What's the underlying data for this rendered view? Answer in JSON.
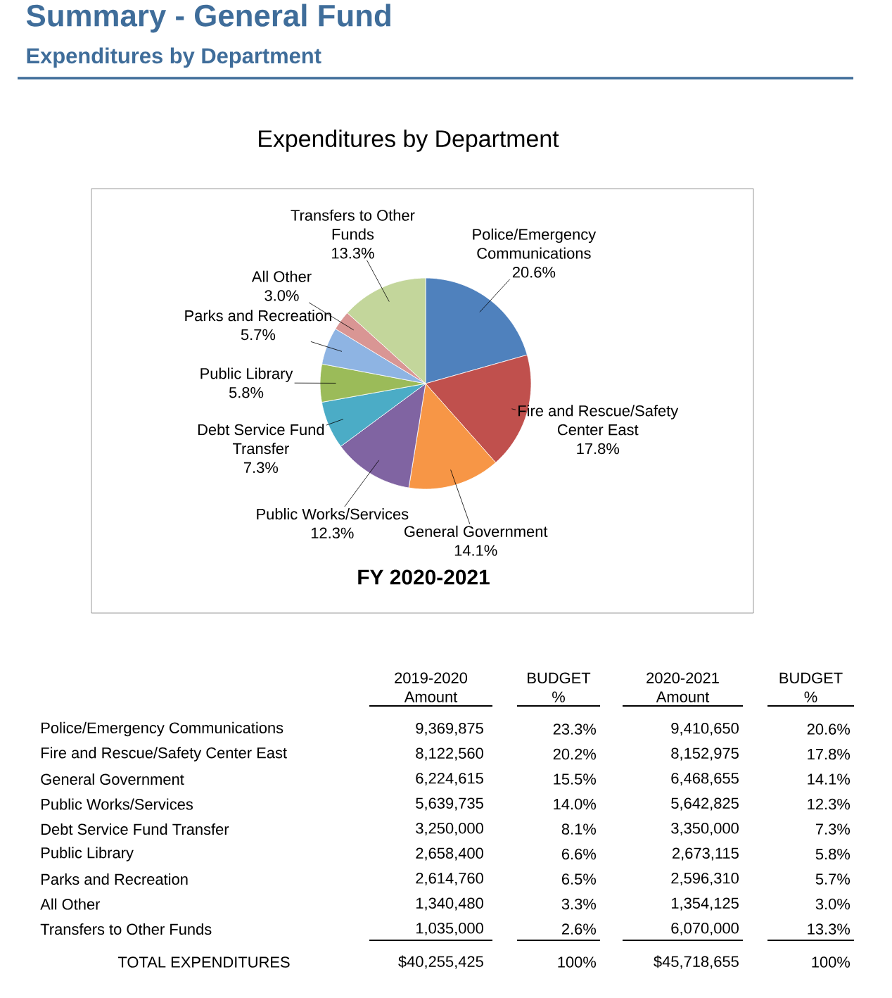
{
  "chart_data": [
    {
      "type": "pie",
      "title": "Expenditures by Department",
      "xlabel": "FY 2020-2021",
      "annotations": [
        "Summary - General Fund",
        "Expenditures by Department"
      ],
      "categories": [
        "Police/Emergency Communications",
        "Fire and Rescue/Safety Center East",
        "General Government",
        "Public Works/Services",
        "Debt Service Fund Transfer",
        "Public Library",
        "Parks and Recreation",
        "All Other",
        "Transfers to Other Funds"
      ],
      "values": [
        20.6,
        17.8,
        14.1,
        12.3,
        7.3,
        5.8,
        5.7,
        3.0,
        13.3
      ],
      "value_labels": [
        "20.6%",
        "17.8%",
        "14.1%",
        "12.3%",
        "7.3%",
        "5.8%",
        "5.7%",
        "3.0%",
        "13.3%"
      ],
      "colors": [
        "#4f81bd",
        "#c0504d",
        "#f79646",
        "#8064a2",
        "#4bacc6",
        "#9bbb59",
        "#8eb4e3",
        "#d99694",
        "#c3d69b"
      ]
    },
    {
      "type": "other",
      "categories": [
        "Police/Emergency Communications",
        "Fire and Rescue/Safety Center East",
        "General Government",
        "Public Works/Services",
        "Debt Service Fund Transfer",
        "Public Library",
        "Parks and Recreation",
        "All Other",
        "Transfers to Other Funds",
        "TOTAL EXPENDITURES"
      ],
      "series": [
        {
          "name": "2019-2020 Amount",
          "values": [
            9369875,
            8122560,
            6224615,
            5639735,
            3250000,
            2658400,
            2614760,
            1340480,
            1035000,
            40255425
          ],
          "value_labels": [
            "9,369,875",
            "8,122,560",
            "6,224,615",
            "5,639,735",
            "3,250,000",
            "2,658,400",
            "2,614,760",
            "1,340,480",
            "1,035,000",
            "$40,255,425"
          ]
        },
        {
          "name": "BUDGET %",
          "values": [
            23.3,
            20.2,
            15.5,
            14.0,
            8.1,
            6.6,
            6.5,
            3.3,
            2.6,
            100
          ],
          "value_labels": [
            "23.3%",
            "20.2%",
            "15.5%",
            "14.0%",
            "8.1%",
            "6.6%",
            "6.5%",
            "3.3%",
            "2.6%",
            "100%"
          ]
        },
        {
          "name": "2020-2021 Amount",
          "values": [
            9410650,
            8152975,
            6468655,
            5642825,
            3350000,
            2673115,
            2596310,
            1354125,
            6070000,
            45718655
          ],
          "value_labels": [
            "9,410,650",
            "8,152,975",
            "6,468,655",
            "5,642,825",
            "3,350,000",
            "2,673,115",
            "2,596,310",
            "1,354,125",
            "6,070,000",
            "$45,718,655"
          ]
        },
        {
          "name": "BUDGET %",
          "values": [
            20.6,
            17.8,
            14.1,
            12.3,
            7.3,
            5.8,
            5.7,
            3.0,
            13.3,
            100
          ],
          "value_labels": [
            "20.6%",
            "17.8%",
            "14.1%",
            "12.3%",
            "7.3%",
            "5.8%",
            "5.7%",
            "3.0%",
            "13.3%",
            "100%"
          ]
        }
      ]
    }
  ]
}
